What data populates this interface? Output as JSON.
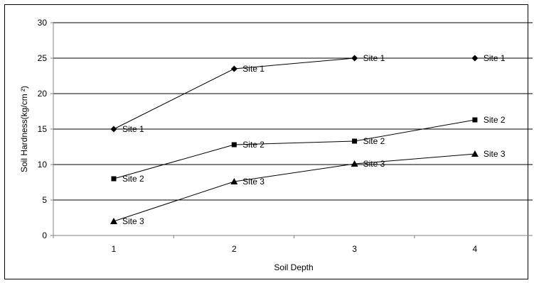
{
  "chart_data": {
    "type": "line",
    "title": "",
    "xlabel": "Soil Depth",
    "ylabel": "Soil Hardness(kg/cm ²)",
    "categories": [
      "1",
      "2",
      "3",
      "4"
    ],
    "ylim": [
      0,
      30
    ],
    "yticks": [
      0,
      5,
      10,
      15,
      20,
      25,
      30
    ],
    "grid": "horizontal",
    "series": [
      {
        "name": "Site 1",
        "marker": "diamond",
        "values": [
          15,
          23.5,
          25,
          25
        ],
        "labels": [
          "Site 1",
          "Site 1",
          "Site 1",
          "Site 1"
        ]
      },
      {
        "name": "Site 2",
        "marker": "square",
        "values": [
          8,
          12.8,
          13.3,
          16.3
        ],
        "labels": [
          "Site 2",
          "Site 2",
          "Site 2",
          "Site 2"
        ]
      },
      {
        "name": "Site 3",
        "marker": "triangle",
        "values": [
          2,
          7.6,
          10.1,
          11.5
        ],
        "labels": [
          "Site 3",
          "Site 3",
          "Site 3",
          "Site 3"
        ]
      }
    ],
    "colors": {
      "line": "#000000",
      "grid": "#000000",
      "axis": "#808080"
    }
  }
}
